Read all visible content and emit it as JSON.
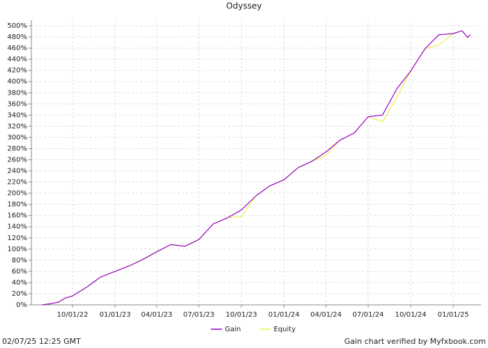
{
  "chart_data": {
    "type": "line",
    "title": "Odyssey",
    "x": [
      "2022-07-27",
      "2022-08-15",
      "2022-09-01",
      "2022-09-15",
      "2022-10-01",
      "2022-11-01",
      "2022-12-01",
      "2023-01-01",
      "2023-02-01",
      "2023-03-01",
      "2023-04-01",
      "2023-05-01",
      "2023-06-01",
      "2023-07-01",
      "2023-08-01",
      "2023-09-01",
      "2023-10-01",
      "2023-11-01",
      "2023-12-01",
      "2024-01-01",
      "2024-02-01",
      "2024-03-01",
      "2024-04-01",
      "2024-05-01",
      "2024-06-01",
      "2024-07-01",
      "2024-08-01",
      "2024-09-01",
      "2024-10-01",
      "2024-11-01",
      "2024-12-01",
      "2025-01-01",
      "2025-01-20",
      "2025-02-01",
      "2025-02-07"
    ],
    "series": [
      {
        "name": "Gain",
        "color": "#9900cc",
        "values": [
          0,
          2,
          5,
          12,
          16,
          32,
          50,
          60,
          70,
          81,
          95,
          108,
          105,
          117,
          145,
          156,
          170,
          195,
          213,
          224,
          246,
          257,
          274,
          295,
          308,
          337,
          340,
          387,
          419,
          459,
          484,
          486,
          491,
          479,
          484
        ]
      },
      {
        "name": "Equity",
        "color": "#e8f04a",
        "values": [
          0,
          2,
          5,
          12,
          16,
          32,
          50,
          60,
          70,
          81,
          95,
          108,
          105,
          117,
          145,
          156,
          158,
          195,
          213,
          224,
          246,
          257,
          268,
          295,
          308,
          337,
          328,
          372,
          419,
          459,
          466,
          486,
          491,
          479,
          484
        ]
      }
    ],
    "xlim": [
      "2022-07-04",
      "2025-03-02"
    ],
    "xticks": [
      {
        "value": "2022-10-01",
        "label": "10/01/22"
      },
      {
        "value": "2023-01-01",
        "label": "01/01/23"
      },
      {
        "value": "2023-04-01",
        "label": "04/01/23"
      },
      {
        "value": "2023-07-01",
        "label": "07/01/23"
      },
      {
        "value": "2023-10-01",
        "label": "10/01/23"
      },
      {
        "value": "2024-01-01",
        "label": "01/01/24"
      },
      {
        "value": "2024-04-01",
        "label": "04/01/24"
      },
      {
        "value": "2024-07-01",
        "label": "07/01/24"
      },
      {
        "value": "2024-10-01",
        "label": "10/01/24"
      },
      {
        "value": "2025-01-01",
        "label": "01/01/25"
      }
    ],
    "ylim": [
      0,
      510
    ],
    "yticks": [
      {
        "value": 0,
        "label": "0%"
      },
      {
        "value": 20,
        "label": "20%"
      },
      {
        "value": 40,
        "label": "40%"
      },
      {
        "value": 60,
        "label": "60%"
      },
      {
        "value": 80,
        "label": "80%"
      },
      {
        "value": 100,
        "label": "100%"
      },
      {
        "value": 120,
        "label": "120%"
      },
      {
        "value": 140,
        "label": "140%"
      },
      {
        "value": 160,
        "label": "160%"
      },
      {
        "value": 180,
        "label": "180%"
      },
      {
        "value": 200,
        "label": "200%"
      },
      {
        "value": 220,
        "label": "220%"
      },
      {
        "value": 240,
        "label": "240%"
      },
      {
        "value": 260,
        "label": "260%"
      },
      {
        "value": 280,
        "label": "280%"
      },
      {
        "value": 300,
        "label": "300%"
      },
      {
        "value": 320,
        "label": "320%"
      },
      {
        "value": 340,
        "label": "340%"
      },
      {
        "value": 360,
        "label": "360%"
      },
      {
        "value": 380,
        "label": "380%"
      },
      {
        "value": 400,
        "label": "400%"
      },
      {
        "value": 420,
        "label": "420%"
      },
      {
        "value": 440,
        "label": "440%"
      },
      {
        "value": 460,
        "label": "460%"
      },
      {
        "value": 480,
        "label": "480%"
      },
      {
        "value": 500,
        "label": "500%"
      }
    ],
    "grid": true,
    "legend": "bottom",
    "timestamp": "02/07/25 12:25 GMT",
    "credit": "Gain chart verified by Myfxbook.com"
  }
}
